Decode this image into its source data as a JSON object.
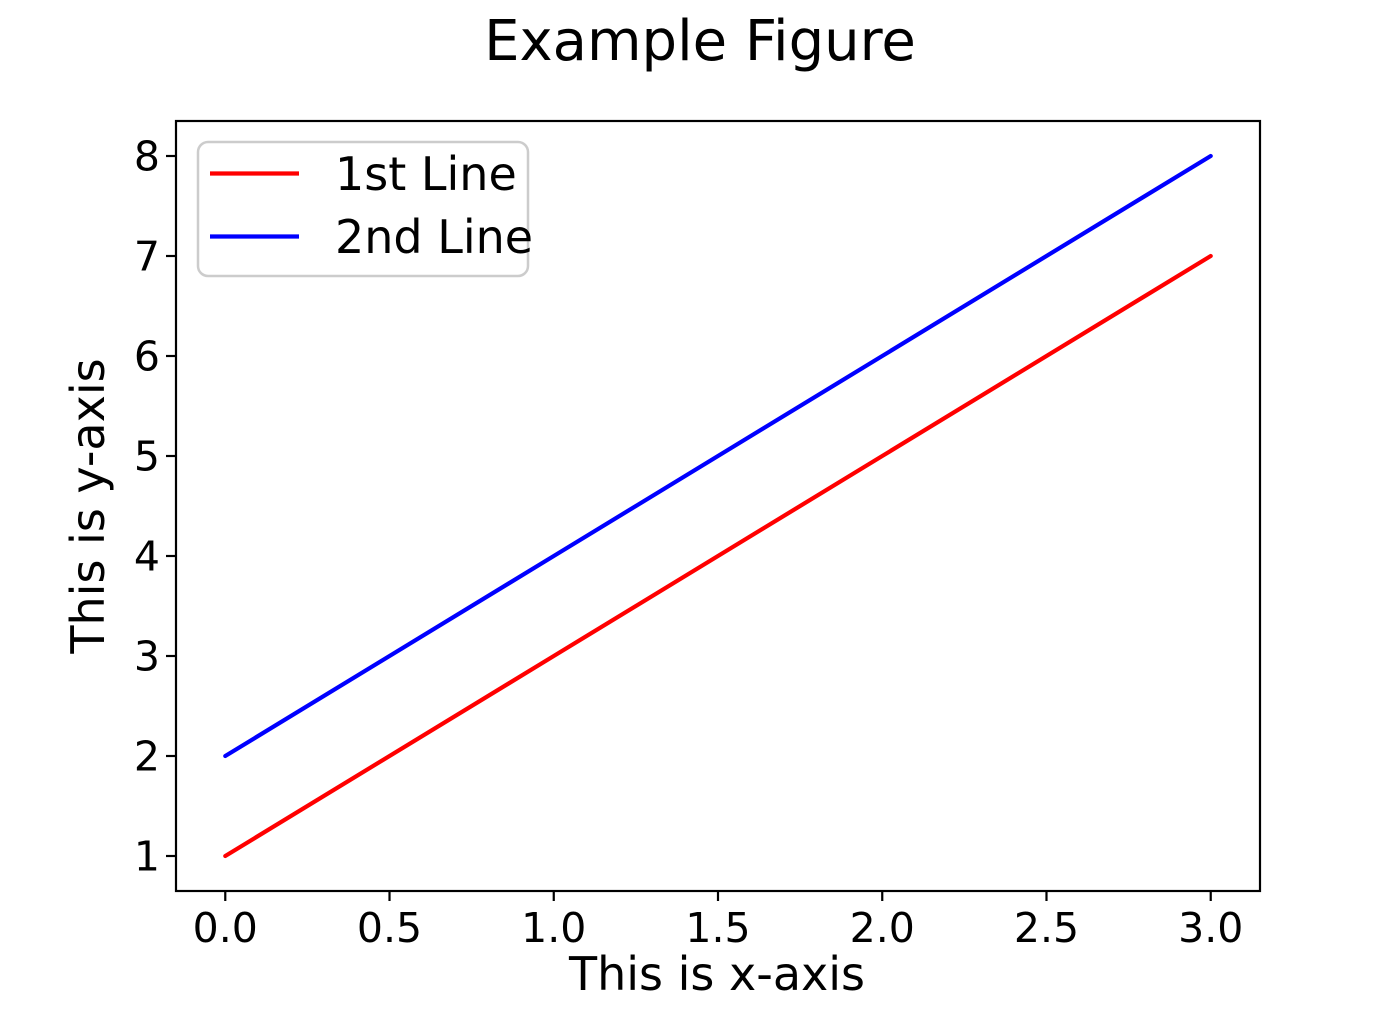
{
  "chart_data": {
    "type": "line",
    "title": "Example Figure",
    "xlabel": "This is x-axis",
    "ylabel": "This is y-axis",
    "xlim": [
      -0.15,
      3.15
    ],
    "ylim": [
      0.65,
      8.35
    ],
    "xticks": [
      0.0,
      0.5,
      1.0,
      1.5,
      2.0,
      2.5,
      3.0
    ],
    "xtick_labels": [
      "0.0",
      "0.5",
      "1.0",
      "1.5",
      "2.0",
      "2.5",
      "3.0"
    ],
    "yticks": [
      1,
      2,
      3,
      4,
      5,
      6,
      7,
      8
    ],
    "ytick_labels": [
      "1",
      "2",
      "3",
      "4",
      "5",
      "6",
      "7",
      "8"
    ],
    "grid": false,
    "background_color": "#ffffff",
    "axis_color": "#000000",
    "legend": {
      "position": "upper left",
      "edge_color": "#cccccc",
      "entries": [
        "1st Line",
        "2nd Line"
      ]
    },
    "series": [
      {
        "name": "1st Line",
        "color": "#ff0000",
        "x": [
          0,
          1,
          2,
          3
        ],
        "y": [
          1,
          3,
          5,
          7
        ]
      },
      {
        "name": "2nd Line",
        "color": "#0000ff",
        "x": [
          0,
          1,
          2,
          3
        ],
        "y": [
          2,
          4,
          6,
          8
        ]
      }
    ]
  }
}
